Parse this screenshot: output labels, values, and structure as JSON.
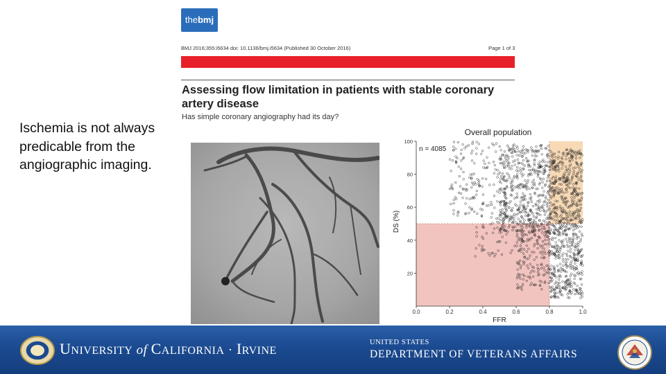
{
  "slide": {
    "body_text": "Ischemia is not always predicable from the angiographic imaging."
  },
  "article": {
    "logo_the": "the",
    "logo_bmj": "bmj",
    "citation": "BMJ 2016;355:i5634 doi: 10.1136/bmj.i5634 (Published 30 October 2016)",
    "page": "Page 1 of 3",
    "title": "Assessing flow limitation in patients with stable coronary artery disease",
    "subtitle": "Has simple coronary angiography had its day?"
  },
  "chart_data": {
    "type": "scatter",
    "title": "Overall population",
    "annotation": "n = 4085",
    "xlabel": "FFR",
    "ylabel": "DS (%)",
    "xlim": [
      0.0,
      1.0
    ],
    "ylim": [
      0,
      100
    ],
    "x_ticks": [
      "0.0",
      "0.2",
      "0.4",
      "0.6",
      "0.8",
      "1.0"
    ],
    "y_ticks": [
      "20",
      "40",
      "60",
      "80",
      "100"
    ],
    "thresholds": {
      "ffr": 0.8,
      "ds": 50
    },
    "regions": [
      {
        "name": "FFR ≤ 0.80 and DS < 50%",
        "x": [
          0.0,
          0.8
        ],
        "y": [
          0,
          50
        ],
        "color": "#f2c4c0"
      },
      {
        "name": "FFR > 0.80 and DS ≥ 50%",
        "x": [
          0.8,
          1.0
        ],
        "y": [
          50,
          100
        ],
        "color": "#f7d9b5"
      }
    ],
    "clusters": [
      {
        "x_range": [
          0.2,
          0.5
        ],
        "y_range": [
          55,
          100
        ],
        "count": 140
      },
      {
        "x_range": [
          0.5,
          0.8
        ],
        "y_range": [
          45,
          98
        ],
        "count": 520
      },
      {
        "x_range": [
          0.8,
          1.0
        ],
        "y_range": [
          5,
          95
        ],
        "count": 760
      },
      {
        "x_range": [
          0.6,
          0.8
        ],
        "y_range": [
          10,
          50
        ],
        "count": 180
      },
      {
        "x_range": [
          0.35,
          0.6
        ],
        "y_range": [
          30,
          55
        ],
        "count": 60
      }
    ]
  },
  "footer": {
    "uci_u": "U",
    "uci_niversity": "NIVERSITY",
    "uci_of": "of",
    "uci_c": "C",
    "uci_alifornia": "ALIFORNIA",
    "uci_dot": "·",
    "uci_i": "I",
    "uci_rvine": "RVINE",
    "va_small": "UNITED STATES",
    "va_large": "DEPARTMENT OF VETERANS AFFAIRS"
  },
  "colors": {
    "bmj_blue": "#2a6ebb",
    "bmj_red": "#e8202a",
    "footer_blue": "#1b4a90"
  }
}
